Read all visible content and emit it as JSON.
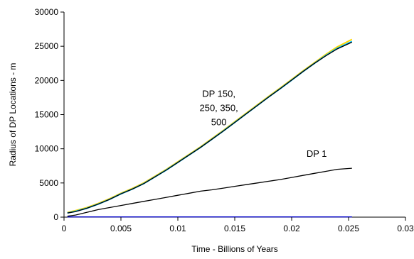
{
  "chart_data": {
    "type": "line",
    "xlabel": "Time - Billions of Years",
    "ylabel": "Radius of DP Locations - m",
    "xlim": [
      0,
      0.03
    ],
    "ylim": [
      0,
      30000
    ],
    "x_ticks": [
      "0",
      "0.005",
      "0.01",
      "0.015",
      "0.02",
      "0.025",
      "0.03"
    ],
    "y_ticks": [
      "0",
      "5000",
      "10000",
      "15000",
      "20000",
      "25000",
      "30000"
    ],
    "grid": false,
    "annotations": [
      {
        "lines": [
          "DP 150,",
          "250, 350,",
          "500"
        ],
        "x": 0.0136,
        "y": 15500
      },
      {
        "lines": [
          "DP 1"
        ],
        "x": 0.0222,
        "y": 8800
      }
    ],
    "series": [
      {
        "color": "#FFD700",
        "points": [
          [
            0.0003,
            700
          ],
          [
            0.001,
            950
          ],
          [
            0.002,
            1400
          ],
          [
            0.003,
            2000
          ],
          [
            0.004,
            2700
          ],
          [
            0.005,
            3500
          ],
          [
            0.006,
            4200
          ],
          [
            0.007,
            5000
          ],
          [
            0.008,
            6000
          ],
          [
            0.009,
            7000
          ],
          [
            0.01,
            8100
          ],
          [
            0.011,
            9200
          ],
          [
            0.012,
            10300
          ],
          [
            0.013,
            11500
          ],
          [
            0.014,
            12700
          ],
          [
            0.015,
            13950
          ],
          [
            0.016,
            15200
          ],
          [
            0.017,
            16450
          ],
          [
            0.018,
            17700
          ],
          [
            0.019,
            18900
          ],
          [
            0.02,
            20150
          ],
          [
            0.021,
            21400
          ],
          [
            0.022,
            22600
          ],
          [
            0.023,
            23800
          ],
          [
            0.024,
            24900
          ],
          [
            0.0253,
            26000
          ]
        ]
      },
      {
        "color": "#00BFFF",
        "points": [
          [
            0.0003,
            600
          ],
          [
            0.001,
            850
          ],
          [
            0.002,
            1300
          ],
          [
            0.003,
            1900
          ],
          [
            0.004,
            2600
          ],
          [
            0.005,
            3400
          ],
          [
            0.006,
            4100
          ],
          [
            0.007,
            4900
          ],
          [
            0.008,
            5900
          ],
          [
            0.009,
            6900
          ],
          [
            0.01,
            8000
          ],
          [
            0.011,
            9100
          ],
          [
            0.012,
            10200
          ],
          [
            0.013,
            11400
          ],
          [
            0.014,
            12600
          ],
          [
            0.015,
            13850
          ],
          [
            0.016,
            15100
          ],
          [
            0.017,
            16350
          ],
          [
            0.018,
            17600
          ],
          [
            0.019,
            18800
          ],
          [
            0.02,
            20050
          ],
          [
            0.021,
            21300
          ],
          [
            0.022,
            22500
          ],
          [
            0.023,
            23650
          ],
          [
            0.024,
            24700
          ],
          [
            0.0253,
            25700
          ]
        ]
      },
      {
        "color": "#000000",
        "points": [
          [
            0.0003,
            600
          ],
          [
            0.001,
            800
          ],
          [
            0.002,
            1300
          ],
          [
            0.003,
            1900
          ],
          [
            0.004,
            2600
          ],
          [
            0.005,
            3400
          ],
          [
            0.006,
            4100
          ],
          [
            0.007,
            4900
          ],
          [
            0.008,
            5900
          ],
          [
            0.009,
            6900
          ],
          [
            0.01,
            8000
          ],
          [
            0.011,
            9100
          ],
          [
            0.012,
            10200
          ],
          [
            0.013,
            11400
          ],
          [
            0.014,
            12600
          ],
          [
            0.015,
            13850
          ],
          [
            0.016,
            15100
          ],
          [
            0.017,
            16350
          ],
          [
            0.018,
            17600
          ],
          [
            0.019,
            18800
          ],
          [
            0.02,
            20050
          ],
          [
            0.021,
            21300
          ],
          [
            0.022,
            22500
          ],
          [
            0.023,
            23600
          ],
          [
            0.024,
            24600
          ],
          [
            0.0253,
            25600
          ]
        ]
      },
      {
        "color": "#000000",
        "points": [
          [
            0.0003,
            150
          ],
          [
            0.001,
            300
          ],
          [
            0.002,
            700
          ],
          [
            0.003,
            1100
          ],
          [
            0.004,
            1400
          ],
          [
            0.005,
            1700
          ],
          [
            0.006,
            2000
          ],
          [
            0.007,
            2300
          ],
          [
            0.008,
            2600
          ],
          [
            0.009,
            2900
          ],
          [
            0.01,
            3200
          ],
          [
            0.011,
            3500
          ],
          [
            0.012,
            3800
          ],
          [
            0.013,
            4000
          ],
          [
            0.014,
            4250
          ],
          [
            0.015,
            4500
          ],
          [
            0.016,
            4750
          ],
          [
            0.017,
            5000
          ],
          [
            0.018,
            5250
          ],
          [
            0.019,
            5500
          ],
          [
            0.02,
            5800
          ],
          [
            0.021,
            6100
          ],
          [
            0.022,
            6400
          ],
          [
            0.023,
            6700
          ],
          [
            0.024,
            7000
          ],
          [
            0.0253,
            7150
          ]
        ]
      },
      {
        "color": "#0000CC",
        "points": [
          [
            0.0003,
            30
          ],
          [
            0.005,
            30
          ],
          [
            0.01,
            30
          ],
          [
            0.015,
            30
          ],
          [
            0.02,
            30
          ],
          [
            0.0253,
            30
          ]
        ]
      }
    ]
  }
}
